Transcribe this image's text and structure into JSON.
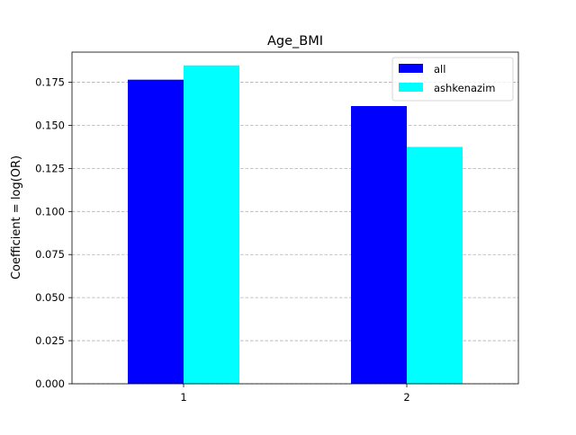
{
  "chart_data": {
    "type": "bar",
    "title": "Age_BMI",
    "xlabel": "",
    "ylabel": "Coefficient = log(OR)",
    "categories": [
      "1",
      "2"
    ],
    "series": [
      {
        "name": "all",
        "color": "#0000ff",
        "values": [
          0.1765,
          0.1612
        ]
      },
      {
        "name": "ashkenazim",
        "color": "#00ffff",
        "values": [
          0.1848,
          0.1375
        ]
      }
    ],
    "ylim": [
      0,
      0.1925
    ],
    "yticks": [
      {
        "value": 0.0,
        "label": "0.000"
      },
      {
        "value": 0.025,
        "label": "0.025"
      },
      {
        "value": 0.05,
        "label": "0.050"
      },
      {
        "value": 0.075,
        "label": "0.075"
      },
      {
        "value": 0.1,
        "label": "0.100"
      },
      {
        "value": 0.125,
        "label": "0.125"
      },
      {
        "value": 0.15,
        "label": "0.150"
      },
      {
        "value": 0.175,
        "label": "0.175"
      }
    ],
    "grid": "y-dashed",
    "legend_position": "top-right"
  }
}
